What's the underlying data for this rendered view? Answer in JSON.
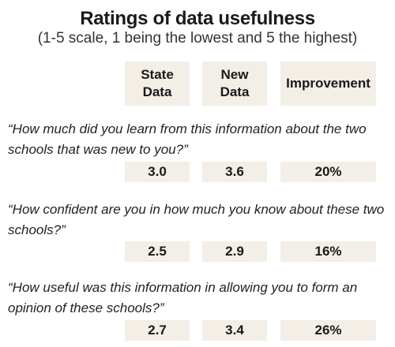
{
  "title": "Ratings of data usefulness",
  "subtitle": "(1-5 scale, 1 being the lowest and 5 the highest)",
  "chart_data": {
    "type": "table",
    "columns": [
      "State\nData",
      "New\nData",
      "Improvement"
    ],
    "rows": [
      {
        "question": "“How much did you learn from this information about the two schools that was new to you?”",
        "state_data": "3.0",
        "new_data": "3.6",
        "improvement": "20%"
      },
      {
        "question": "“How confident are you in how much you know about these two schools?”",
        "state_data": "2.5",
        "new_data": "2.9",
        "improvement": "16%"
      },
      {
        "question": "“How useful was this information in allowing you to form an opinion of these schools?”",
        "state_data": "2.7",
        "new_data": "3.4",
        "improvement": "26%"
      }
    ]
  },
  "colors": {
    "cell_background": "#f3eee6",
    "text": "#1a1a1a"
  }
}
